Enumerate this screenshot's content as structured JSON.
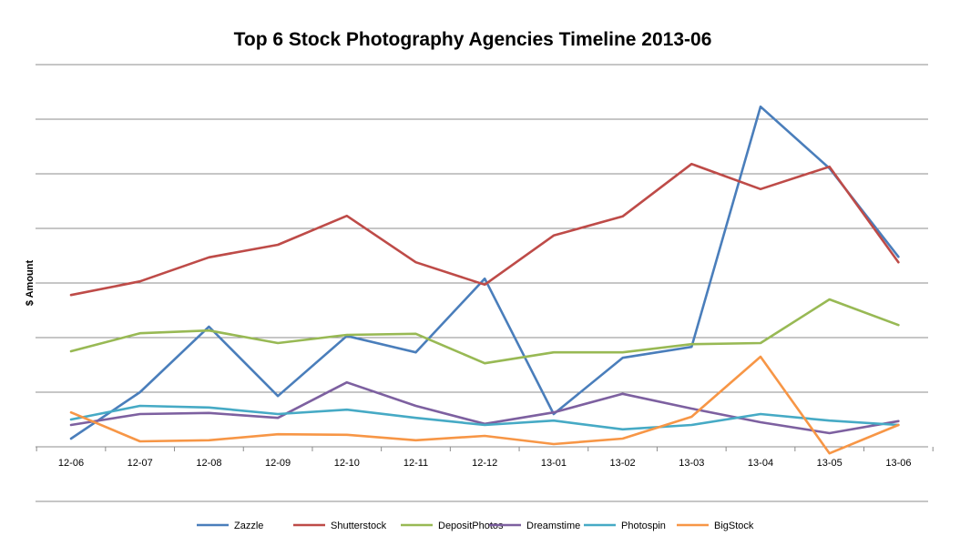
{
  "chart_data": {
    "type": "line",
    "title": "Top 6 Stock Photography Agencies Timeline 2013-06",
    "xlabel": "",
    "ylabel": "$ Amount",
    "categories": [
      "12-06",
      "12-07",
      "12-08",
      "12-09",
      "12-10",
      "12-11",
      "12-12",
      "13-01",
      "13-02",
      "13-03",
      "13-04",
      "13-05",
      "13-06"
    ],
    "ylim": [
      -1,
      7
    ],
    "grid": true,
    "y_tick_labels_shown": false,
    "legend_position": "bottom",
    "series": [
      {
        "name": "Zazzle",
        "color": "#4a7ebb",
        "values": [
          0.15,
          1.0,
          2.2,
          0.93,
          2.03,
          1.73,
          3.08,
          0.6,
          1.63,
          1.83,
          6.23,
          5.1,
          3.48
        ]
      },
      {
        "name": "Shutterstock",
        "color": "#be4b48",
        "values": [
          2.78,
          3.03,
          3.47,
          3.7,
          4.23,
          3.38,
          2.97,
          3.87,
          4.22,
          5.18,
          4.72,
          5.13,
          3.38
        ]
      },
      {
        "name": "DepositPhotos",
        "color": "#98b954",
        "values": [
          1.75,
          2.08,
          2.13,
          1.9,
          2.05,
          2.07,
          1.53,
          1.73,
          1.73,
          1.88,
          1.9,
          2.7,
          2.23
        ]
      },
      {
        "name": "Dreamstime",
        "color": "#7d60a0",
        "values": [
          0.4,
          0.6,
          0.62,
          0.53,
          1.18,
          0.75,
          0.42,
          0.63,
          0.97,
          0.7,
          0.45,
          0.25,
          0.47
        ]
      },
      {
        "name": "Photospin",
        "color": "#46aac5",
        "values": [
          0.5,
          0.75,
          0.72,
          0.6,
          0.68,
          0.53,
          0.4,
          0.48,
          0.32,
          0.4,
          0.6,
          0.48,
          0.4
        ]
      },
      {
        "name": "BigStock",
        "color": "#f79646",
        "values": [
          0.63,
          0.1,
          0.12,
          0.23,
          0.22,
          0.12,
          0.2,
          0.05,
          0.15,
          0.55,
          1.65,
          -0.12,
          0.4
        ]
      }
    ]
  }
}
